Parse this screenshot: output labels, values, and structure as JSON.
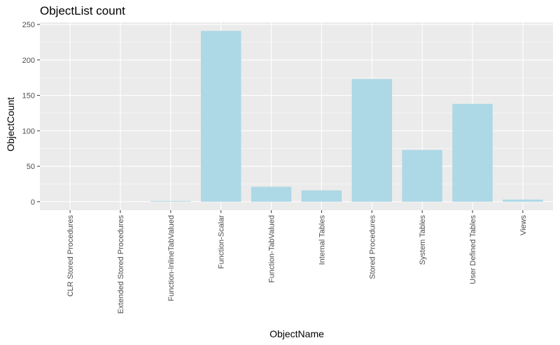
{
  "chart_data": {
    "type": "bar",
    "title": "ObjectList count",
    "xlabel": "ObjectName",
    "ylabel": "ObjectCount",
    "categories": [
      "CLR Stored Procedures",
      "Extended Stored Procedures",
      "Function-InlineTabValued",
      "Function-Scalar",
      "Function-TabValued",
      "Internal Tables",
      "Stored Procedures",
      "System Tables",
      "User Defined Tables",
      "Views"
    ],
    "values": [
      0,
      0,
      1,
      241,
      21,
      16,
      173,
      73,
      138,
      3
    ],
    "ylim": [
      -12,
      253
    ],
    "yticks": [
      0,
      50,
      100,
      150,
      200,
      250
    ],
    "x_tick_rotation": "vertical",
    "grid": true,
    "legend": "none",
    "colors": {
      "bar": "#add8e6",
      "panel": "#ebebeb",
      "grid_major": "#ffffff",
      "tick_text": "#4d4d4d"
    }
  }
}
